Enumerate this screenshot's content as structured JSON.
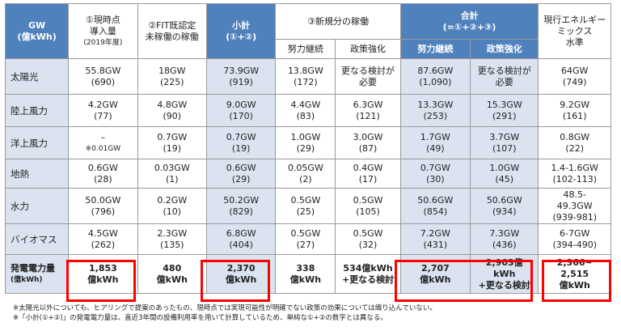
{
  "header": {
    "gw_label": "GW",
    "gw_unit": "(億kWh)",
    "c1_line1": "①現時点",
    "c1_line2": "導入量",
    "c1_line3": "(2019年度)",
    "c2_line1": "②FIT既認定",
    "c2_line2": "未稼働の稼働",
    "c3_line1": "小計",
    "c3_line2": "(①+②)",
    "c4": "③新規分の稼働",
    "c4_sub1": "努力継続",
    "c4_sub2": "政策強化",
    "c5_line1": "合計",
    "c5_line2": "(=①+②+③)",
    "c5_sub1": "努力継続",
    "c5_sub2": "政策強化",
    "c6_line1": "現行エネルギー",
    "c6_line2": "ミックス",
    "c6_line3": "水準"
  },
  "rows": [
    {
      "label": "太陽光",
      "cells": [
        [
          "55.8GW",
          "(690)"
        ],
        [
          "18GW",
          "(225)"
        ],
        [
          "73.9GW",
          "(919)"
        ],
        [
          "13.8GW",
          "(172)"
        ],
        [
          "更なる検討が",
          "必要"
        ],
        [
          "87.6GW",
          "(1,090)"
        ],
        [
          "更なる検討が",
          "必要"
        ],
        [
          "64GW",
          "(749)"
        ]
      ]
    },
    {
      "label": "陸上風力",
      "cells": [
        [
          "4.2GW",
          "(77)"
        ],
        [
          "4.8GW",
          "(90)"
        ],
        [
          "9.0GW",
          "(170)"
        ],
        [
          "4.4GW",
          "(83)"
        ],
        [
          "6.3GW",
          "(121)"
        ],
        [
          "13.3GW",
          "(253)"
        ],
        [
          "15.3GW",
          "(291)"
        ],
        [
          "9.2GW",
          "(161)"
        ]
      ]
    },
    {
      "label": "洋上風力",
      "cells": [
        [
          "–",
          "※0.01GW"
        ],
        [
          "0.7GW",
          "(19)"
        ],
        [
          "0.7GW",
          "(19)"
        ],
        [
          "1.0GW",
          "(29)"
        ],
        [
          "3.0GW",
          "(87)"
        ],
        [
          "1.7GW",
          "(49)"
        ],
        [
          "3.7GW",
          "(107)"
        ],
        [
          "0.8GW",
          "(22)"
        ]
      ]
    },
    {
      "label": "地熱",
      "cells": [
        [
          "0.6GW",
          "(28)"
        ],
        [
          "0.03GW",
          "(1)"
        ],
        [
          "0.6GW",
          "(29)"
        ],
        [
          "0.05GW",
          "(2)"
        ],
        [
          "0.4GW",
          "(17)"
        ],
        [
          "0.7GW",
          "(30)"
        ],
        [
          "1.0GW",
          "(45)"
        ],
        [
          "1.4-1.6GW",
          "(102-113)"
        ]
      ]
    },
    {
      "label": "水力",
      "cells": [
        [
          "50.0GW",
          "(796)"
        ],
        [
          "0.2GW",
          "(10)"
        ],
        [
          "50.2GW",
          "(829)"
        ],
        [
          "0.5GW",
          "(25)"
        ],
        [
          "0.5GW",
          "(105)"
        ],
        [
          "50.6GW",
          "(854)"
        ],
        [
          "50.6GW",
          "(934)"
        ],
        [
          "48.5-",
          "49.3GW",
          "(939-981)"
        ]
      ]
    },
    {
      "label": "バイオマス",
      "cells": [
        [
          "4.5GW",
          "(262)"
        ],
        [
          "2.3GW",
          "(135)"
        ],
        [
          "6.8GW",
          "(404)"
        ],
        [
          "0.5GW",
          "(27)"
        ],
        [
          "0.5GW",
          "(32)"
        ],
        [
          "7.2GW",
          "(431)"
        ],
        [
          "7.3GW",
          "(436)"
        ],
        [
          "6-7GW",
          "(394-490)"
        ]
      ]
    }
  ],
  "total": {
    "label": "発電電力量",
    "unit": "(億kWh)",
    "cells": [
      [
        "1,853",
        "億kWh"
      ],
      [
        "480",
        "億kWh"
      ],
      [
        "2,370",
        "億kWh"
      ],
      [
        "338",
        "億kWh"
      ],
      [
        "534億kWh",
        "+更なる検討"
      ],
      [
        "2,707",
        "億kWh"
      ],
      [
        "2,903億",
        "kWh",
        "+更なる検討"
      ],
      [
        "2,366~",
        "2,515",
        "億kWh"
      ]
    ]
  },
  "notes": [
    "※太陽光以外についても、ヒアリングで提案のあったもの、現時点では実現可能性が明確でない政策の効果については織り込んでいない。",
    "※「小計(①+②)」の発電電力量は、直近3年間の設備利用率を用いて計算しているため、単純な①+②の数字とは異なる。"
  ],
  "colors": {
    "header_blue": "#4f81bd",
    "row_shade": "#dbe3f1",
    "highlight_red": "#ff0000"
  }
}
